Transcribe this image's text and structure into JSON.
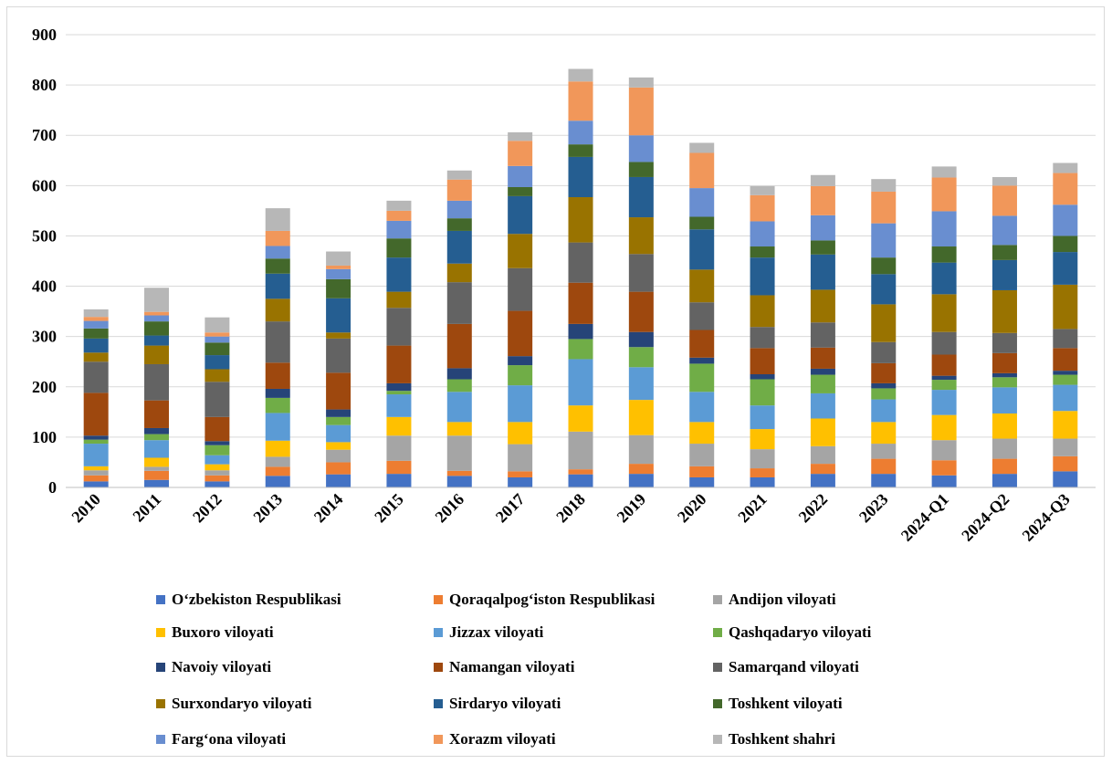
{
  "chart_data": {
    "type": "bar",
    "stacked": true,
    "title": "",
    "xlabel": "",
    "ylabel": "",
    "ylim": [
      0,
      900
    ],
    "yticks": [
      0,
      100,
      200,
      300,
      400,
      500,
      600,
      700,
      800,
      900
    ],
    "grid": true,
    "legend_position": "bottom",
    "categories": [
      "2010",
      "2011",
      "2012",
      "2013",
      "2014",
      "2015",
      "2016",
      "2017",
      "2018",
      "2019",
      "2020",
      "2021",
      "2022",
      "2023",
      "2024-Q1",
      "2024-Q2",
      "2024-Q3"
    ],
    "series": [
      {
        "name": "O‘zbekiston Respublikasi",
        "color": "#4472C4",
        "values": [
          12,
          15,
          12,
          23,
          26,
          27,
          23,
          20,
          26,
          27,
          20,
          20,
          27,
          27,
          24,
          27,
          32
        ]
      },
      {
        "name": "Qoraqalpog‘iston Respublikasi",
        "color": "#ED7D31",
        "values": [
          12,
          18,
          12,
          18,
          24,
          26,
          10,
          12,
          10,
          20,
          22,
          18,
          20,
          30,
          30,
          30,
          30
        ]
      },
      {
        "name": "Andijon viloyati",
        "color": "#A5A5A5",
        "values": [
          10,
          8,
          10,
          20,
          25,
          50,
          70,
          54,
          75,
          57,
          45,
          38,
          35,
          30,
          40,
          40,
          35
        ]
      },
      {
        "name": "Buxoro viloyati",
        "color": "#FFC000",
        "values": [
          8,
          18,
          12,
          32,
          15,
          37,
          27,
          44,
          52,
          70,
          43,
          40,
          55,
          43,
          50,
          50,
          55
        ]
      },
      {
        "name": "Jizzax viloyati",
        "color": "#5B9BD5",
        "values": [
          45,
          35,
          18,
          55,
          34,
          45,
          60,
          73,
          92,
          65,
          60,
          47,
          50,
          45,
          50,
          52,
          52
        ]
      },
      {
        "name": "Qashqadaryo viloyati",
        "color": "#70AD47",
        "values": [
          8,
          12,
          20,
          30,
          16,
          7,
          25,
          40,
          40,
          40,
          56,
          52,
          37,
          22,
          20,
          20,
          20
        ]
      },
      {
        "name": "Navoiy viloyati",
        "color": "#264478",
        "values": [
          8,
          12,
          8,
          18,
          15,
          15,
          22,
          18,
          30,
          30,
          12,
          10,
          12,
          10,
          8,
          8,
          8
        ]
      },
      {
        "name": "Namangan viloyati",
        "color": "#9E480E",
        "values": [
          85,
          55,
          48,
          52,
          73,
          75,
          88,
          90,
          82,
          80,
          55,
          52,
          42,
          40,
          42,
          40,
          45
        ]
      },
      {
        "name": "Samarqand viloyati",
        "color": "#636363",
        "values": [
          62,
          72,
          70,
          82,
          68,
          75,
          83,
          85,
          80,
          75,
          55,
          42,
          50,
          42,
          45,
          40,
          38
        ]
      },
      {
        "name": "Surxondaryo viloyati",
        "color": "#997300",
        "values": [
          18,
          37,
          25,
          45,
          12,
          32,
          37,
          68,
          90,
          73,
          65,
          63,
          65,
          75,
          75,
          85,
          88
        ]
      },
      {
        "name": "Sirdaryo viloyati",
        "color": "#255E91",
        "values": [
          28,
          20,
          28,
          50,
          68,
          68,
          65,
          75,
          80,
          80,
          80,
          75,
          70,
          60,
          63,
          60,
          65
        ]
      },
      {
        "name": "Toshkent viloyati",
        "color": "#43682B",
        "values": [
          20,
          28,
          25,
          30,
          38,
          38,
          25,
          18,
          25,
          30,
          25,
          22,
          28,
          33,
          32,
          30,
          32
        ]
      },
      {
        "name": "Farg‘ona viloyati",
        "color": "#698ED0",
        "values": [
          15,
          12,
          12,
          25,
          20,
          35,
          35,
          42,
          47,
          53,
          57,
          50,
          50,
          68,
          70,
          58,
          62
        ]
      },
      {
        "name": "Xorazm viloyati",
        "color": "#F1975A",
        "values": [
          8,
          7,
          8,
          30,
          7,
          20,
          42,
          50,
          78,
          95,
          70,
          52,
          58,
          63,
          67,
          60,
          63
        ]
      },
      {
        "name": "Toshkent shahri",
        "color": "#B7B7B7",
        "values": [
          15,
          48,
          30,
          45,
          28,
          20,
          18,
          17,
          25,
          20,
          20,
          18,
          22,
          25,
          22,
          17,
          20
        ]
      }
    ]
  }
}
